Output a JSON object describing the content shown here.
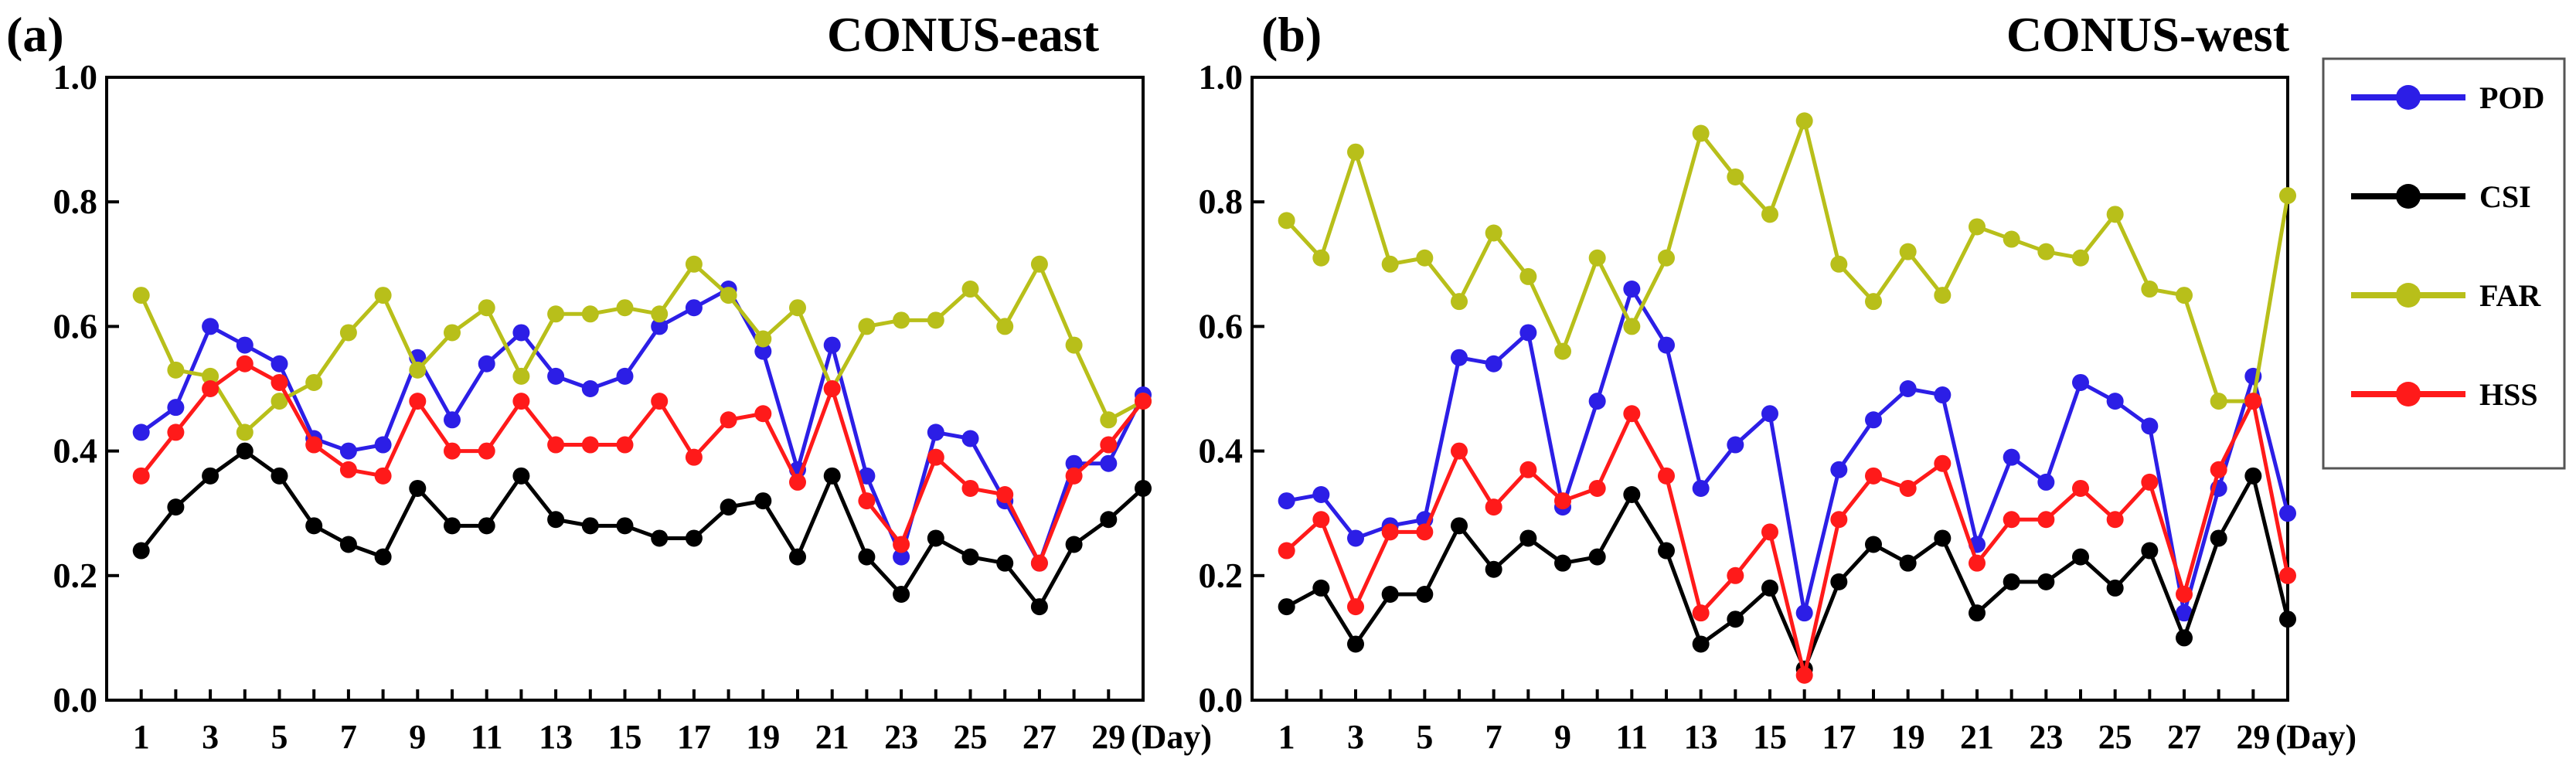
{
  "chart_data": [
    {
      "type": "line",
      "panel_label": "(a)",
      "title": "CONUS-east",
      "xlabel": "(Day)",
      "ylabel": "",
      "xlim": [
        0,
        30
      ],
      "ylim": [
        0.0,
        1.0
      ],
      "x_tick_labels": [
        "1",
        "3",
        "5",
        "7",
        "9",
        "11",
        "13",
        "15",
        "17",
        "19",
        "21",
        "23",
        "25",
        "27",
        "29"
      ],
      "y_tick_labels": [
        "0.0",
        "0.2",
        "0.4",
        "0.6",
        "0.8",
        "1.0"
      ],
      "x": [
        1,
        2,
        3,
        4,
        5,
        6,
        7,
        8,
        9,
        10,
        11,
        12,
        13,
        14,
        15,
        16,
        17,
        18,
        19,
        20,
        21,
        22,
        23,
        24,
        25,
        26,
        27,
        28,
        29,
        30
      ],
      "series": [
        {
          "name": "POD",
          "color": "#2c1ee6",
          "values": [
            0.43,
            0.47,
            0.6,
            0.57,
            0.54,
            0.42,
            0.4,
            0.41,
            0.55,
            0.45,
            0.54,
            0.59,
            0.52,
            0.5,
            0.52,
            0.6,
            0.63,
            0.66,
            0.56,
            0.37,
            0.57,
            0.36,
            0.23,
            0.43,
            0.42,
            0.32,
            0.22,
            0.38,
            0.38,
            0.49
          ]
        },
        {
          "name": "CSI",
          "color": "#000000",
          "values": [
            0.24,
            0.31,
            0.36,
            0.4,
            0.36,
            0.28,
            0.25,
            0.23,
            0.34,
            0.28,
            0.28,
            0.36,
            0.29,
            0.28,
            0.28,
            0.26,
            0.26,
            0.31,
            0.32,
            0.23,
            0.36,
            0.23,
            0.17,
            0.26,
            0.23,
            0.22,
            0.15,
            0.25,
            0.29,
            0.34
          ]
        },
        {
          "name": "FAR",
          "color": "#b8bf1a",
          "values": [
            0.65,
            0.53,
            0.52,
            0.43,
            0.48,
            0.51,
            0.59,
            0.65,
            0.53,
            0.59,
            0.63,
            0.52,
            0.62,
            0.62,
            0.63,
            0.62,
            0.7,
            0.65,
            0.58,
            0.63,
            0.5,
            0.6,
            0.61,
            0.61,
            0.66,
            0.6,
            0.7,
            0.57,
            0.45,
            0.48
          ]
        },
        {
          "name": "HSS",
          "color": "#ff1a1a",
          "values": [
            0.36,
            0.43,
            0.5,
            0.54,
            0.51,
            0.41,
            0.37,
            0.36,
            0.48,
            0.4,
            0.4,
            0.48,
            0.41,
            0.41,
            0.41,
            0.48,
            0.39,
            0.45,
            0.46,
            0.35,
            0.5,
            0.32,
            0.25,
            0.39,
            0.34,
            0.33,
            0.22,
            0.36,
            0.41,
            0.48
          ]
        }
      ]
    },
    {
      "type": "line",
      "panel_label": "(b)",
      "title": "CONUS-west",
      "xlabel": "(Day)",
      "ylabel": "",
      "xlim": [
        0,
        30
      ],
      "ylim": [
        0.0,
        1.0
      ],
      "x_tick_labels": [
        "1",
        "3",
        "5",
        "7",
        "9",
        "11",
        "13",
        "15",
        "17",
        "19",
        "21",
        "23",
        "25",
        "27",
        "29"
      ],
      "y_tick_labels": [
        "0.0",
        "0.2",
        "0.4",
        "0.6",
        "0.8",
        "1.0"
      ],
      "x": [
        1,
        2,
        3,
        4,
        5,
        6,
        7,
        8,
        9,
        10,
        11,
        12,
        13,
        14,
        15,
        16,
        17,
        18,
        19,
        20,
        21,
        22,
        23,
        24,
        25,
        26,
        27,
        28,
        29,
        30
      ],
      "series": [
        {
          "name": "POD",
          "color": "#2c1ee6",
          "values": [
            0.32,
            0.33,
            0.26,
            0.28,
            0.29,
            0.55,
            0.54,
            0.59,
            0.31,
            0.48,
            0.66,
            0.57,
            0.34,
            0.41,
            0.46,
            0.14,
            0.37,
            0.45,
            0.5,
            0.49,
            0.25,
            0.39,
            0.35,
            0.51,
            0.48,
            0.44,
            0.14,
            0.34,
            0.52,
            0.3
          ]
        },
        {
          "name": "CSI",
          "color": "#000000",
          "values": [
            0.15,
            0.18,
            0.09,
            0.17,
            0.17,
            0.28,
            0.21,
            0.26,
            0.22,
            0.23,
            0.33,
            0.24,
            0.09,
            0.13,
            0.18,
            0.05,
            0.19,
            0.25,
            0.22,
            0.26,
            0.14,
            0.19,
            0.19,
            0.23,
            0.18,
            0.24,
            0.1,
            0.26,
            0.36,
            0.13
          ]
        },
        {
          "name": "FAR",
          "color": "#b8bf1a",
          "values": [
            0.77,
            0.71,
            0.88,
            0.7,
            0.71,
            0.64,
            0.75,
            0.68,
            0.56,
            0.71,
            0.6,
            0.71,
            0.91,
            0.84,
            0.78,
            0.93,
            0.7,
            0.64,
            0.72,
            0.65,
            0.76,
            0.74,
            0.72,
            0.71,
            0.78,
            0.66,
            0.65,
            0.48,
            0.48,
            0.81
          ]
        },
        {
          "name": "HSS",
          "color": "#ff1a1a",
          "values": [
            0.24,
            0.29,
            0.15,
            0.27,
            0.27,
            0.4,
            0.31,
            0.37,
            0.32,
            0.34,
            0.46,
            0.36,
            0.14,
            0.2,
            0.27,
            0.04,
            0.29,
            0.36,
            0.34,
            0.38,
            0.22,
            0.29,
            0.29,
            0.34,
            0.29,
            0.35,
            0.17,
            0.37,
            0.48,
            0.2
          ]
        }
      ]
    }
  ],
  "legend": {
    "items": [
      {
        "label": "POD",
        "color": "#2c1ee6"
      },
      {
        "label": "CSI",
        "color": "#000000"
      },
      {
        "label": "FAR",
        "color": "#b8bf1a"
      },
      {
        "label": "HSS",
        "color": "#ff1a1a"
      }
    ]
  }
}
